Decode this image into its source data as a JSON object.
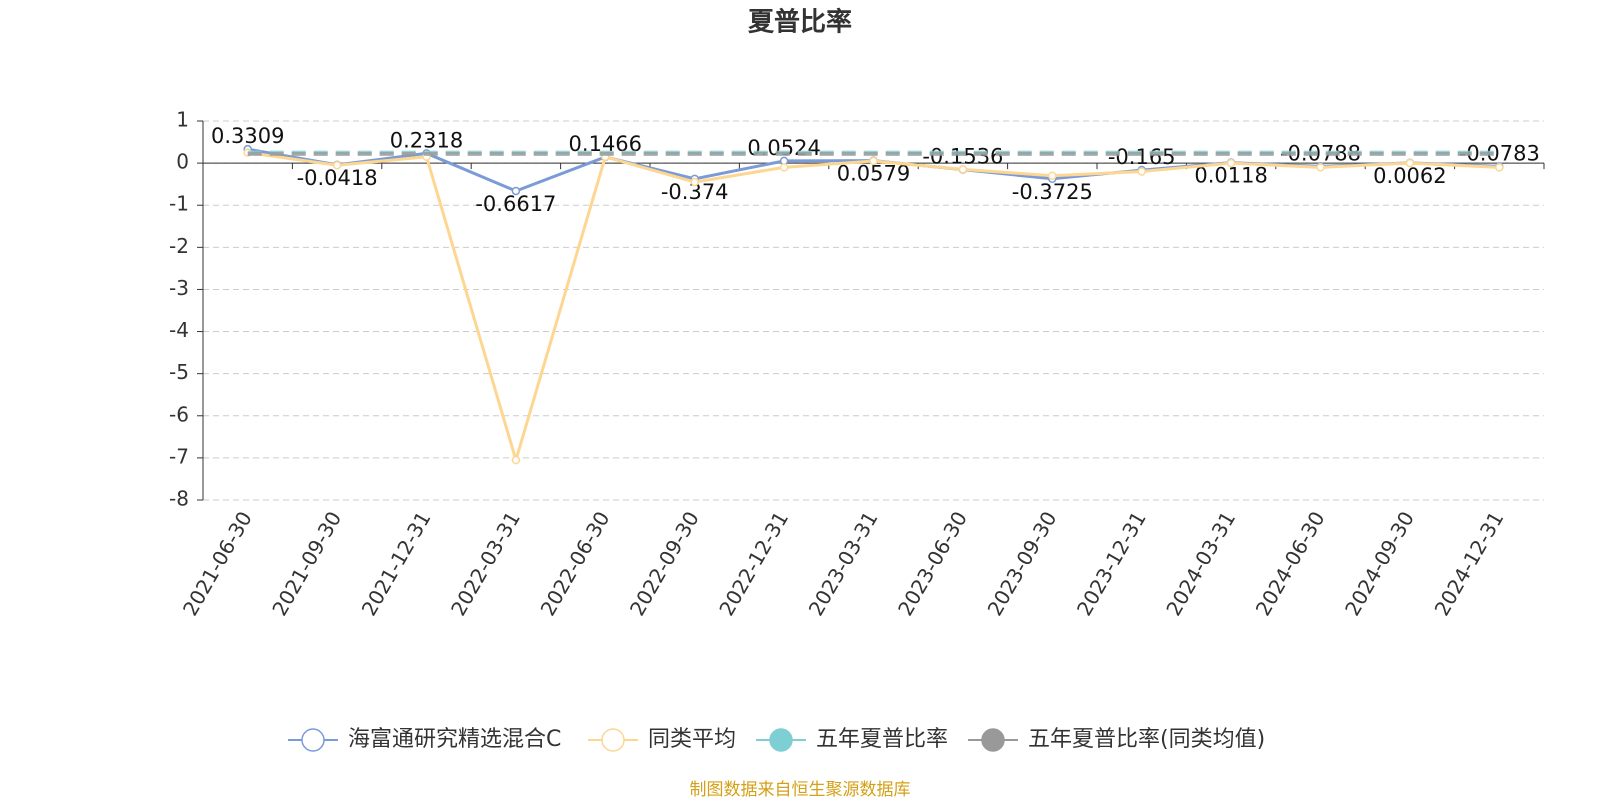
{
  "chart_data": {
    "type": "line",
    "title": "夏普比率",
    "categories": [
      "2021-06-30",
      "2021-09-30",
      "2021-12-31",
      "2022-03-31",
      "2022-06-30",
      "2022-09-30",
      "2022-12-31",
      "2023-03-31",
      "2023-06-30",
      "2023-09-30",
      "2023-12-31",
      "2024-03-31",
      "2024-06-30",
      "2024-09-30",
      "2024-12-31"
    ],
    "series": [
      {
        "name": "海富通研究精选混合C",
        "color": "#7b9bd6",
        "marker": "hollow",
        "labels": true,
        "values": [
          0.3309,
          -0.0418,
          0.2318,
          -0.6617,
          0.1466,
          -0.374,
          0.0524,
          0.0579,
          -0.1536,
          -0.3725,
          -0.165,
          0.0118,
          -0.0788,
          0.0062,
          -0.0783
        ]
      },
      {
        "name": "同类平均",
        "color": "#fdd692",
        "marker": "hollow",
        "values": [
          0.25,
          -0.05,
          0.15,
          -7.05,
          0.15,
          -0.45,
          -0.1,
          0.05,
          -0.15,
          -0.3,
          -0.2,
          0.0,
          -0.1,
          0.0,
          -0.1
        ]
      },
      {
        "name": "五年夏普比率",
        "color": "#7ecfd4",
        "marker": "filled",
        "dashed": true,
        "values": [
          0.25,
          0.25,
          0.25,
          0.25,
          0.25,
          0.25,
          0.25,
          0.25,
          0.25,
          0.25,
          0.25,
          0.25,
          0.25,
          0.25,
          0.25
        ]
      },
      {
        "name": "五年夏普比率(同类均值)",
        "color": "#999999",
        "marker": "filled",
        "dashed": true,
        "values": [
          0.22,
          0.22,
          0.22,
          0.22,
          0.22,
          0.22,
          0.22,
          0.22,
          0.22,
          0.22,
          0.22,
          0.22,
          0.22,
          0.22,
          0.22
        ]
      }
    ],
    "ylim": [
      -8,
      1
    ],
    "yticks": [
      -8,
      -7,
      -6,
      -5,
      -4,
      -3,
      -2,
      -1,
      0,
      1
    ],
    "grid": true,
    "legend": "bottom",
    "source": "制图数据来自恒生聚源数据库"
  }
}
